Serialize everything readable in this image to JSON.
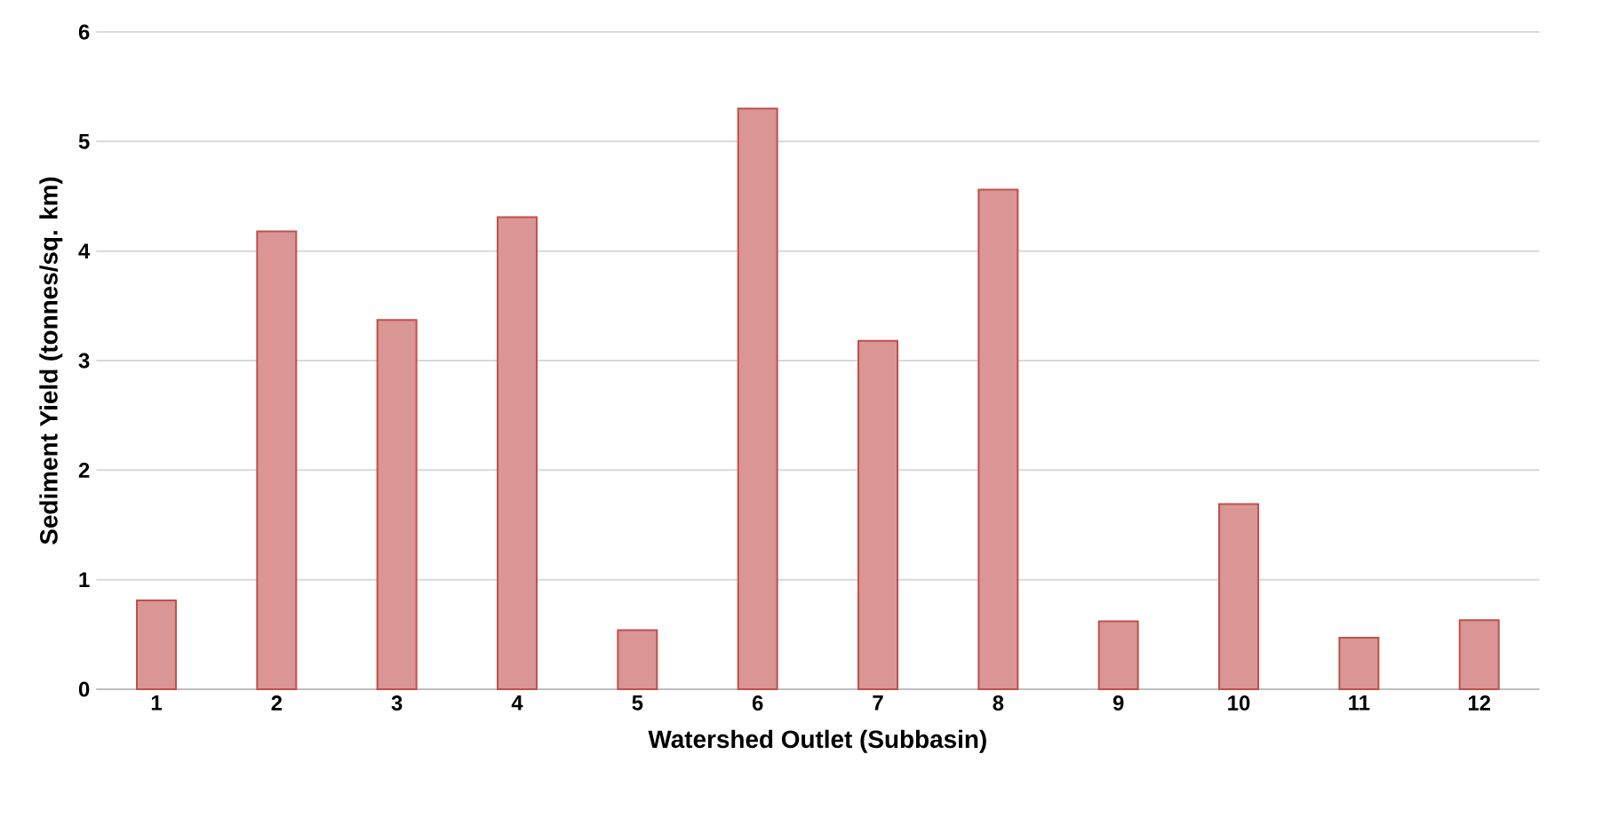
{
  "chart_data": {
    "type": "bar",
    "xlabel": "Watershed Outlet (Subbasin)",
    "ylabel": "Sediment Yield (tonnes/sq. km)",
    "categories": [
      "1",
      "2",
      "3",
      "4",
      "5",
      "6",
      "7",
      "8",
      "9",
      "10",
      "11",
      "12"
    ],
    "values": [
      0.81,
      4.18,
      3.37,
      4.31,
      0.54,
      5.3,
      3.18,
      4.56,
      0.62,
      1.69,
      0.47,
      0.63
    ],
    "color": "#c0504d",
    "ylim": [
      0,
      6
    ],
    "yticks": [
      0,
      1,
      2,
      3,
      4,
      5,
      6
    ],
    "grid": "y"
  }
}
